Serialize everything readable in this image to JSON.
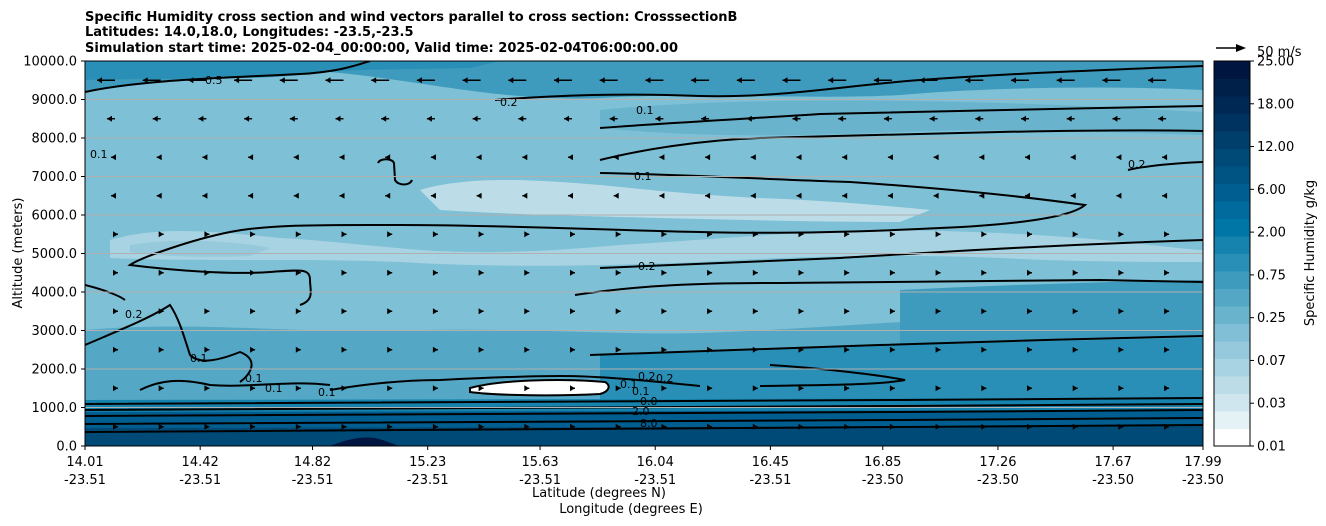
{
  "chart_data": {
    "type": "heatmap",
    "title_lines": [
      "Specific Humidity cross section and wind vectors parallel to cross section: CrosssectionB",
      "Latitudes: 14.0,18.0, Longitudes: -23.5,-23.5",
      "Simulation start time: 2025-02-04_00:00:00, Valid time: 2025-02-04T06:00:00.00"
    ],
    "ylabel": "Altitude (meters)",
    "xlabel_lat": "Latitude (degrees N)",
    "xlabel_lon": "Longitude (degrees E)",
    "ylim": [
      0,
      10000
    ],
    "xlim": [
      14.01,
      17.99
    ],
    "yticks": [
      "0.0",
      "1000.0",
      "2000.0",
      "3000.0",
      "4000.0",
      "5000.0",
      "6000.0",
      "7000.0",
      "8000.0",
      "9000.0",
      "10000.0"
    ],
    "xticks": [
      {
        "lat": "14.01",
        "lon": "-23.51"
      },
      {
        "lat": "14.42",
        "lon": "-23.51"
      },
      {
        "lat": "14.82",
        "lon": "-23.51"
      },
      {
        "lat": "15.23",
        "lon": "-23.51"
      },
      {
        "lat": "15.63",
        "lon": "-23.51"
      },
      {
        "lat": "16.04",
        "lon": "-23.51"
      },
      {
        "lat": "16.45",
        "lon": "-23.51"
      },
      {
        "lat": "16.85",
        "lon": "-23.50"
      },
      {
        "lat": "17.26",
        "lon": "-23.50"
      },
      {
        "lat": "17.67",
        "lon": "-23.50"
      },
      {
        "lat": "17.99",
        "lon": "-23.50"
      }
    ],
    "grid": "horizontal",
    "colorbar": {
      "label": "Specific Humidity g/kg",
      "tick_labels": [
        "0.01",
        "0.03",
        "0.07",
        "0.25",
        "0.75",
        "2.00",
        "6.00",
        "12.00",
        "18.00",
        "25.00"
      ],
      "colors": [
        "#ffffff",
        "#e4f1f5",
        "#cfe6ee",
        "#bcdde8",
        "#a8d3e2",
        "#95c9db",
        "#80bfd5",
        "#6ab3cd",
        "#54a7c5",
        "#3e9bbd",
        "#2a8fb6",
        "#1583ae",
        "#0076a6",
        "#006b9c",
        "#005f90",
        "#005483",
        "#004a77",
        "#003f6b",
        "#00335f",
        "#002854",
        "#001f49",
        "#00153f"
      ]
    },
    "wind_vector_key": "50 m/s",
    "humidity_layers": [
      {
        "altitude_range": [
          0,
          1000
        ],
        "level_gkg": "6.00-12.00"
      },
      {
        "altitude_range": [
          1000,
          1200
        ],
        "level_gkg": "0.75-2.00"
      },
      {
        "altitude_range": [
          1200,
          3000
        ],
        "level_gkg": "0.25"
      },
      {
        "altitude_range": [
          3000,
          8000
        ],
        "level_gkg": "0.07-0.25"
      },
      {
        "altitude_range": [
          8000,
          10000
        ],
        "level_gkg": "0.25-0.75"
      }
    ],
    "contour_labels": [
      "0.5",
      "0.2",
      "0.1",
      "0.1",
      "0.1",
      "0.2",
      "0.2",
      "0.2",
      "0.1",
      "0.1",
      "0.1",
      "0.1",
      "0.2",
      "0.1",
      "0.1",
      "0.0",
      "2.0",
      "8.0",
      "0.2"
    ]
  }
}
